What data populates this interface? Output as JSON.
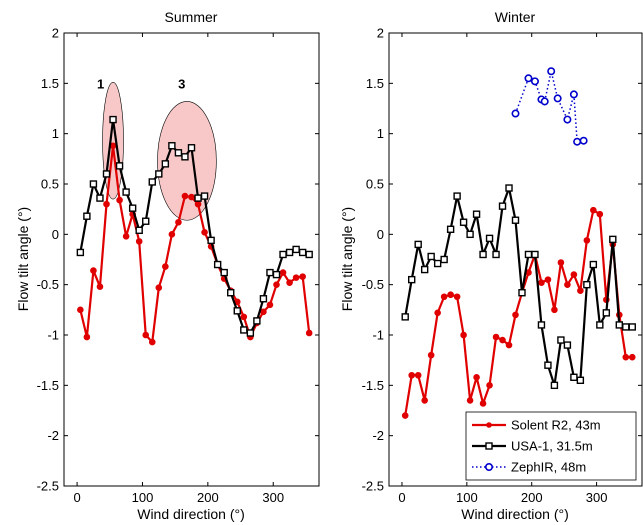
{
  "chart_data": [
    {
      "type": "line",
      "title": "Summer",
      "xlabel": "Wind direction (°)",
      "ylabel": "Flow tilt angle (°)",
      "xlim": [
        -20,
        370
      ],
      "ylim": [
        -2.5,
        2
      ],
      "xticks": [
        0,
        100,
        200,
        300
      ],
      "yticks": [
        -2.5,
        -2,
        -1.5,
        -1,
        -0.5,
        0,
        0.5,
        1,
        1.5,
        2
      ],
      "grid": false,
      "series": [
        {
          "name": "Solent R2, 43m",
          "color": "#e00000",
          "marker": "filled-circle",
          "x": [
            5,
            15,
            25,
            35,
            45,
            55,
            65,
            75,
            85,
            95,
            105,
            115,
            125,
            135,
            145,
            155,
            165,
            175,
            185,
            195,
            205,
            215,
            225,
            235,
            245,
            255,
            265,
            275,
            285,
            295,
            305,
            315,
            325,
            335,
            345,
            355
          ],
          "y": [
            -0.75,
            -1.02,
            -0.36,
            -0.52,
            0.3,
            0.88,
            0.34,
            -0.02,
            0.2,
            -0.07,
            -1.0,
            -1.07,
            -0.53,
            -0.32,
            0.0,
            0.12,
            0.38,
            0.37,
            0.3,
            0.02,
            -0.12,
            -0.3,
            -0.44,
            -0.56,
            -0.67,
            -0.82,
            -1.02,
            -0.88,
            -0.77,
            -0.7,
            -0.5,
            -0.38,
            -0.48,
            -0.43,
            -0.42,
            -0.98
          ]
        },
        {
          "name": "USA-1, 31.5m",
          "color": "#000000",
          "marker": "open-square",
          "x": [
            5,
            15,
            25,
            35,
            45,
            55,
            65,
            75,
            85,
            95,
            105,
            115,
            125,
            135,
            145,
            155,
            165,
            175,
            185,
            195,
            205,
            215,
            225,
            235,
            245,
            255,
            265,
            275,
            285,
            295,
            305,
            315,
            325,
            335,
            345,
            355
          ],
          "y": [
            -0.18,
            0.18,
            0.5,
            0.36,
            0.6,
            1.14,
            0.68,
            0.42,
            0.26,
            0.04,
            0.13,
            0.52,
            0.6,
            0.7,
            0.88,
            0.81,
            0.77,
            0.86,
            0.36,
            0.38,
            -0.06,
            -0.3,
            -0.38,
            -0.58,
            -0.76,
            -0.95,
            -0.98,
            -0.86,
            -0.64,
            -0.38,
            -0.4,
            -0.2,
            -0.18,
            -0.15,
            -0.18,
            -0.2
          ]
        }
      ],
      "annotations": [
        {
          "text": "1",
          "x": 36,
          "y": 1.45
        },
        {
          "text": "3",
          "x": 160,
          "y": 1.45
        }
      ],
      "highlight_ellipses": [
        {
          "cx": 55,
          "cy": 0.93,
          "rx": 16,
          "ry": 0.58,
          "color": "#f8c8c8"
        },
        {
          "cx": 168,
          "cy": 0.73,
          "rx": 45,
          "ry": 0.59,
          "color": "#f8c8c8"
        }
      ]
    },
    {
      "type": "line",
      "title": "Winter",
      "xlabel": "Wind direction (°)",
      "ylabel": "Flow tilt angle (°)",
      "xlim": [
        -20,
        370
      ],
      "ylim": [
        -2.5,
        2
      ],
      "xticks": [
        0,
        100,
        200,
        300
      ],
      "yticks": [
        -2.5,
        -2,
        -1.5,
        -1,
        -0.5,
        0,
        0.5,
        1,
        1.5,
        2
      ],
      "grid": false,
      "legend_position": "bottom-right",
      "series": [
        {
          "name": "Solent R2, 43m",
          "color": "#e00000",
          "marker": "filled-circle",
          "x": [
            5,
            15,
            25,
            35,
            45,
            55,
            65,
            75,
            85,
            95,
            105,
            115,
            125,
            135,
            145,
            155,
            165,
            175,
            185,
            195,
            205,
            215,
            225,
            235,
            245,
            255,
            265,
            275,
            285,
            295,
            305,
            315,
            325,
            335,
            345,
            355
          ],
          "y": [
            -1.8,
            -1.4,
            -1.4,
            -1.65,
            -1.2,
            -0.78,
            -0.62,
            -0.6,
            -0.62,
            -1.0,
            -1.65,
            -1.42,
            -1.68,
            -1.5,
            -1.02,
            -1.05,
            -1.1,
            -0.8,
            -0.58,
            -0.38,
            -0.2,
            -0.48,
            -0.45,
            -0.75,
            -0.28,
            -0.5,
            -0.4,
            -0.56,
            -0.06,
            0.24,
            0.2,
            -0.65,
            -0.1,
            -0.8,
            -1.22,
            -1.22
          ]
        },
        {
          "name": "USA-1, 31.5m",
          "color": "#000000",
          "marker": "open-square",
          "x": [
            5,
            15,
            25,
            35,
            45,
            55,
            65,
            75,
            85,
            95,
            105,
            115,
            125,
            135,
            145,
            155,
            165,
            175,
            185,
            195,
            205,
            215,
            225,
            235,
            245,
            255,
            265,
            275,
            285,
            295,
            305,
            315,
            325,
            335,
            345,
            355
          ],
          "y": [
            -0.82,
            -0.45,
            -0.1,
            -0.35,
            -0.22,
            -0.29,
            -0.25,
            0.05,
            0.38,
            0.12,
            0.0,
            0.2,
            -0.2,
            -0.04,
            -0.2,
            0.28,
            0.46,
            0.14,
            -0.58,
            -0.2,
            -0.2,
            -0.9,
            -1.3,
            -1.5,
            -1.05,
            -1.1,
            -1.42,
            -1.45,
            -0.5,
            -0.3,
            -0.9,
            -0.78,
            -0.05,
            -0.9,
            -0.92,
            -0.92
          ]
        },
        {
          "name": "ZephIR, 48m",
          "color": "#0000cc",
          "marker": "open-circle",
          "line_style": "dotted",
          "x": [
            175,
            195,
            205,
            215,
            220,
            230,
            240,
            255,
            265,
            270,
            280
          ],
          "y": [
            1.2,
            1.55,
            1.52,
            1.34,
            1.32,
            1.62,
            1.35,
            1.14,
            1.39,
            0.92,
            0.93
          ]
        }
      ]
    }
  ]
}
